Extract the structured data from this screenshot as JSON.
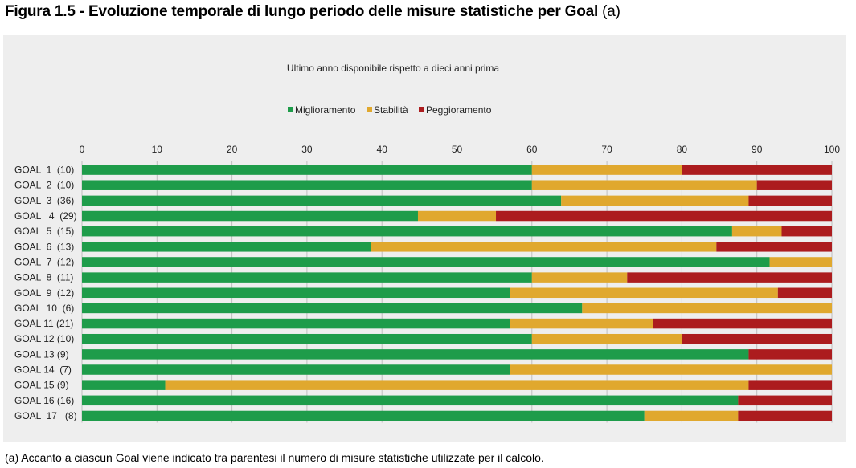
{
  "figure": {
    "title": "Figura 1.5 - Evoluzione temporale di lungo periodo delle misure statistiche per Goal",
    "title_suffix": "(a)",
    "footnote": "(a) Accanto a ciascun Goal viene indicato tra parentesi il numero di misure statistiche utilizzate per il calcolo."
  },
  "chart_data": {
    "type": "bar",
    "orientation": "horizontal",
    "stacked": true,
    "subtitle": "Ultimo anno disponibile rispetto a dieci anni prima",
    "categories": [
      "GOAL  1  (10)",
      "GOAL  2  (10)",
      "GOAL  3  (36)",
      "GOAL   4  (29)",
      "GOAL  5  (15)",
      "GOAL  6  (13)",
      "GOAL  7  (12)",
      "GOAL  8  (11)",
      "GOAL  9  (12)",
      "GOAL  10  (6)",
      "GOAL 11 (21)",
      "GOAL 12 (10)",
      "GOAL 13 (9)",
      "GOAL 14  (7)",
      "GOAL 15 (9)",
      "GOAL 16 (16)",
      "GOAL  17   (8)"
    ],
    "series": [
      {
        "name": "Miglioramento",
        "color": "#1e9c4a",
        "values": [
          60,
          60,
          63.9,
          44.8,
          86.7,
          38.5,
          91.7,
          60,
          57.1,
          66.7,
          57.1,
          60,
          88.9,
          57.1,
          11.1,
          87.5,
          75
        ]
      },
      {
        "name": "Stabilità",
        "color": "#e0a82e",
        "values": [
          20,
          30,
          25,
          10.4,
          6.6,
          46.1,
          8.3,
          12.7,
          35.7,
          33.3,
          19.1,
          20,
          0,
          42.9,
          77.8,
          0,
          12.5
        ]
      },
      {
        "name": "Peggioramento",
        "color": "#ac1c1e",
        "values": [
          20,
          10,
          11.1,
          44.8,
          6.7,
          15.4,
          0,
          27.3,
          7.2,
          0,
          23.8,
          20,
          11.1,
          0,
          11.1,
          12.5,
          12.5
        ]
      }
    ],
    "xlim": [
      0,
      100
    ],
    "xticks": [
      0,
      10,
      20,
      30,
      40,
      50,
      60,
      70,
      80,
      90,
      100
    ],
    "grid": true,
    "legend_position": "top-center"
  }
}
